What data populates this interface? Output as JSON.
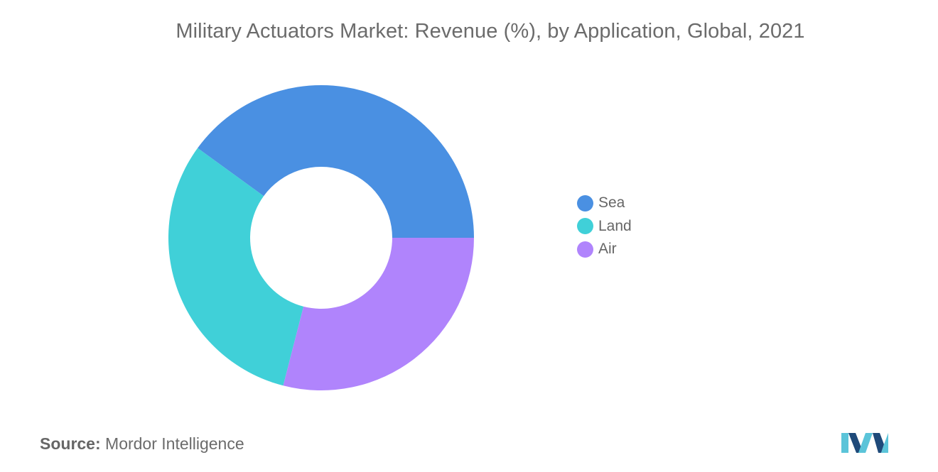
{
  "header": {
    "title": "Military Actuators Market: Revenue (%), by Application, Global, 2021"
  },
  "chart_data": {
    "type": "pie",
    "variant": "donut",
    "title": "Military Actuators Market: Revenue (%), by Application, Global, 2021",
    "categories": [
      "Sea",
      "Land",
      "Air"
    ],
    "values": [
      40,
      31,
      29
    ],
    "colors": [
      "#4a90e2",
      "#40d0d8",
      "#b084fc"
    ],
    "legend_placement": "right",
    "start_angle_deg": 0,
    "direction": "counterclockwise"
  },
  "legend": {
    "items": [
      {
        "label": "Sea",
        "color": "#4a90e2"
      },
      {
        "label": "Land",
        "color": "#40d0d8"
      },
      {
        "label": "Air",
        "color": "#b084fc"
      }
    ]
  },
  "footer": {
    "source_label": "Source:",
    "source_value": "Mordor Intelligence"
  },
  "logo": {
    "icon": "mordor-intelligence-logo-icon",
    "colors": [
      "#1f4a7a",
      "#5bc4d9"
    ]
  }
}
